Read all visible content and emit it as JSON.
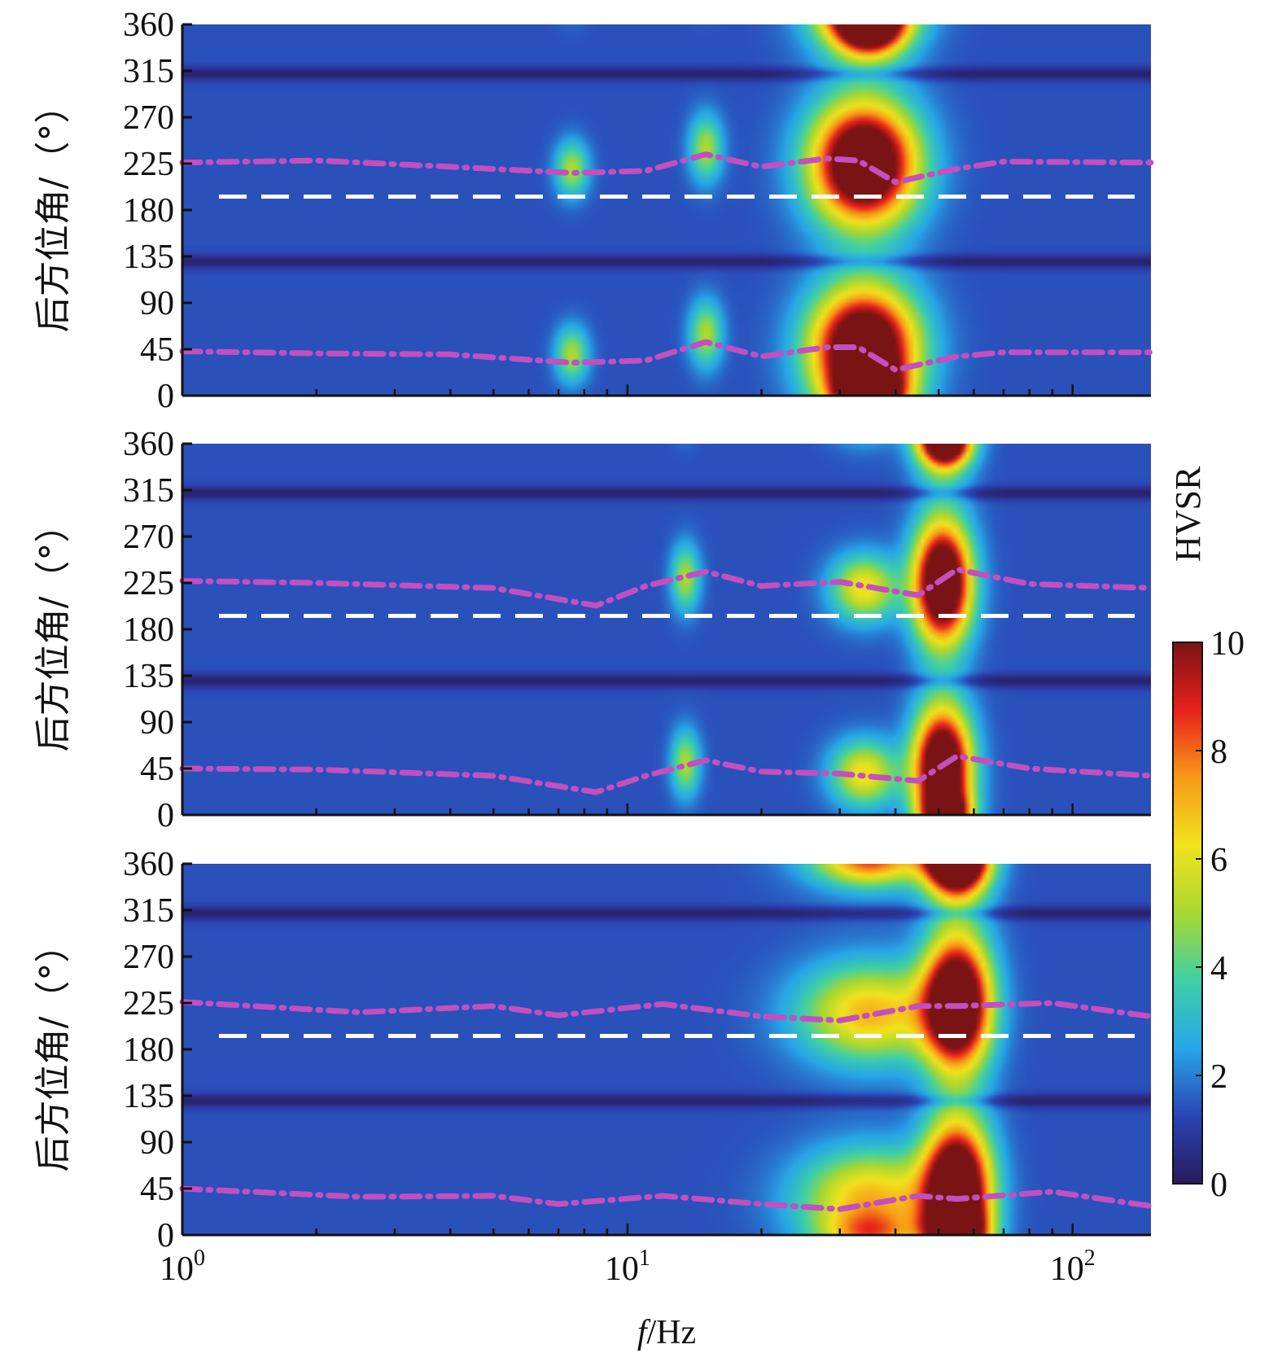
{
  "chart_data": [
    {
      "type": "heatmap",
      "ylabel": "后方位角/（°）",
      "x_scale": "log",
      "xlim": [
        1,
        150
      ],
      "ylim": [
        0,
        360
      ],
      "yticks": [
        "0",
        "45",
        "90",
        "135",
        "180",
        "225",
        "270",
        "315",
        "360"
      ],
      "reference_line_deg": 193,
      "blobs": [
        {
          "f": 34,
          "az": 225,
          "peak": 10,
          "f_width_dec": 0.11,
          "az_width": 55
        },
        {
          "f": 34,
          "az": 45,
          "peak": 10,
          "f_width_dec": 0.11,
          "az_width": 55
        },
        {
          "f": 35,
          "az": 360,
          "peak": 8,
          "f_width_dec": 0.07,
          "az_width": 25
        },
        {
          "f": 7.5,
          "az": 220,
          "peak": 3,
          "f_width_dec": 0.035,
          "az_width": 25
        },
        {
          "f": 7.5,
          "az": 40,
          "peak": 3,
          "f_width_dec": 0.035,
          "az_width": 25
        },
        {
          "f": 15,
          "az": 240,
          "peak": 3,
          "f_width_dec": 0.035,
          "az_width": 30
        },
        {
          "f": 15,
          "az": 60,
          "peak": 3,
          "f_width_dec": 0.035,
          "az_width": 30
        }
      ],
      "magenta_trace": [
        {
          "f": 1.0,
          "az1": 226,
          "az2": 43
        },
        {
          "f": 2.0,
          "az1": 228,
          "az2": 41
        },
        {
          "f": 4.0,
          "az1": 222,
          "az2": 40
        },
        {
          "f": 7.5,
          "az1": 216,
          "az2": 32
        },
        {
          "f": 11.0,
          "az1": 218,
          "az2": 34
        },
        {
          "f": 15.0,
          "az1": 234,
          "az2": 52
        },
        {
          "f": 20.0,
          "az1": 222,
          "az2": 38
        },
        {
          "f": 28.0,
          "az1": 230,
          "az2": 47
        },
        {
          "f": 33.0,
          "az1": 228,
          "az2": 47
        },
        {
          "f": 40.0,
          "az1": 207,
          "az2": 25
        },
        {
          "f": 55.0,
          "az1": 220,
          "az2": 38
        },
        {
          "f": 70.0,
          "az1": 227,
          "az2": 42
        },
        {
          "f": 150.0,
          "az1": 226,
          "az2": 42
        }
      ]
    },
    {
      "type": "heatmap",
      "ylabel": "后方位角/（°）",
      "x_scale": "log",
      "xlim": [
        1,
        150
      ],
      "ylim": [
        0,
        360
      ],
      "yticks": [
        "0",
        "45",
        "90",
        "135",
        "180",
        "225",
        "270",
        "315",
        "360"
      ],
      "reference_line_deg": 193,
      "blobs": [
        {
          "f": 51,
          "az": 225,
          "peak": 10,
          "f_width_dec": 0.06,
          "az_width": 55
        },
        {
          "f": 51,
          "az": 45,
          "peak": 10,
          "f_width_dec": 0.06,
          "az_width": 55
        },
        {
          "f": 52,
          "az": 360,
          "peak": 6,
          "f_width_dec": 0.05,
          "az_width": 20
        },
        {
          "f": 34,
          "az": 220,
          "peak": 4,
          "f_width_dec": 0.07,
          "az_width": 30
        },
        {
          "f": 34,
          "az": 40,
          "peak": 4,
          "f_width_dec": 0.07,
          "az_width": 30
        },
        {
          "f": 13.5,
          "az": 230,
          "peak": 3,
          "f_width_dec": 0.03,
          "az_width": 30
        },
        {
          "f": 13.5,
          "az": 50,
          "peak": 3,
          "f_width_dec": 0.03,
          "az_width": 30
        }
      ],
      "magenta_trace": [
        {
          "f": 1.0,
          "az1": 227,
          "az2": 45
        },
        {
          "f": 2.0,
          "az1": 225,
          "az2": 44
        },
        {
          "f": 5.0,
          "az1": 220,
          "az2": 38
        },
        {
          "f": 8.5,
          "az1": 203,
          "az2": 22
        },
        {
          "f": 11.0,
          "az1": 222,
          "az2": 38
        },
        {
          "f": 15.0,
          "az1": 236,
          "az2": 53
        },
        {
          "f": 20.0,
          "az1": 222,
          "az2": 42
        },
        {
          "f": 30.0,
          "az1": 226,
          "az2": 40
        },
        {
          "f": 45.0,
          "az1": 213,
          "az2": 33
        },
        {
          "f": 55.0,
          "az1": 238,
          "az2": 57
        },
        {
          "f": 80.0,
          "az1": 224,
          "az2": 45
        },
        {
          "f": 150.0,
          "az1": 220,
          "az2": 38
        }
      ]
    },
    {
      "type": "heatmap",
      "ylabel": "后方位角/（°）",
      "xlabel": "f/Hz",
      "x_scale": "log",
      "xlim": [
        1,
        150
      ],
      "xticks": [
        1,
        10,
        100
      ],
      "ylim": [
        0,
        360
      ],
      "yticks": [
        "0",
        "45",
        "90",
        "135",
        "180",
        "225",
        "270",
        "315",
        "360"
      ],
      "reference_line_deg": 193,
      "blobs": [
        {
          "f": 55,
          "az": 225,
          "peak": 10,
          "f_width_dec": 0.07,
          "az_width": 60
        },
        {
          "f": 55,
          "az": 45,
          "peak": 10,
          "f_width_dec": 0.07,
          "az_width": 60
        },
        {
          "f": 55,
          "az": 360,
          "peak": 7,
          "f_width_dec": 0.06,
          "az_width": 25
        },
        {
          "f": 35,
          "az": 215,
          "peak": 4.5,
          "f_width_dec": 0.15,
          "az_width": 45
        },
        {
          "f": 35,
          "az": 35,
          "peak": 4.5,
          "f_width_dec": 0.15,
          "az_width": 45
        },
        {
          "f": 35,
          "az": 360,
          "peak": 3,
          "f_width_dec": 0.1,
          "az_width": 20
        }
      ],
      "magenta_trace": [
        {
          "f": 1.0,
          "az1": 226,
          "az2": 45
        },
        {
          "f": 2.5,
          "az1": 216,
          "az2": 37
        },
        {
          "f": 5.0,
          "az1": 222,
          "az2": 38
        },
        {
          "f": 7.0,
          "az1": 213,
          "az2": 30
        },
        {
          "f": 12.0,
          "az1": 224,
          "az2": 38
        },
        {
          "f": 20.0,
          "az1": 212,
          "az2": 30
        },
        {
          "f": 30.0,
          "az1": 208,
          "az2": 25
        },
        {
          "f": 45.0,
          "az1": 222,
          "az2": 38
        },
        {
          "f": 55.0,
          "az1": 222,
          "az2": 35
        },
        {
          "f": 90.0,
          "az1": 225,
          "az2": 42
        },
        {
          "f": 150.0,
          "az1": 212,
          "az2": 28
        }
      ]
    }
  ],
  "colorbar": {
    "title": "HVSR",
    "min": 0,
    "max": 10,
    "ticks": [
      "0",
      "2",
      "4",
      "6",
      "8",
      "10"
    ],
    "colormap": [
      "#2a1a5e",
      "#2a44b4",
      "#27a6e8",
      "#3fd0a6",
      "#a8d830",
      "#f2e21e",
      "#f79a16",
      "#e8201c",
      "#7a1414"
    ]
  },
  "x_tick_labels": [
    {
      "base": "10",
      "exp": "0"
    },
    {
      "base": "10",
      "exp": "1"
    },
    {
      "base": "10",
      "exp": "2"
    }
  ],
  "xlabel": {
    "italic": "f",
    "rest": "/Hz"
  },
  "colors": {
    "trace": "#c34fc0",
    "reference_line": "#ffffff",
    "background_min": "#2f4fb4",
    "trough": "#1b1f5c"
  }
}
